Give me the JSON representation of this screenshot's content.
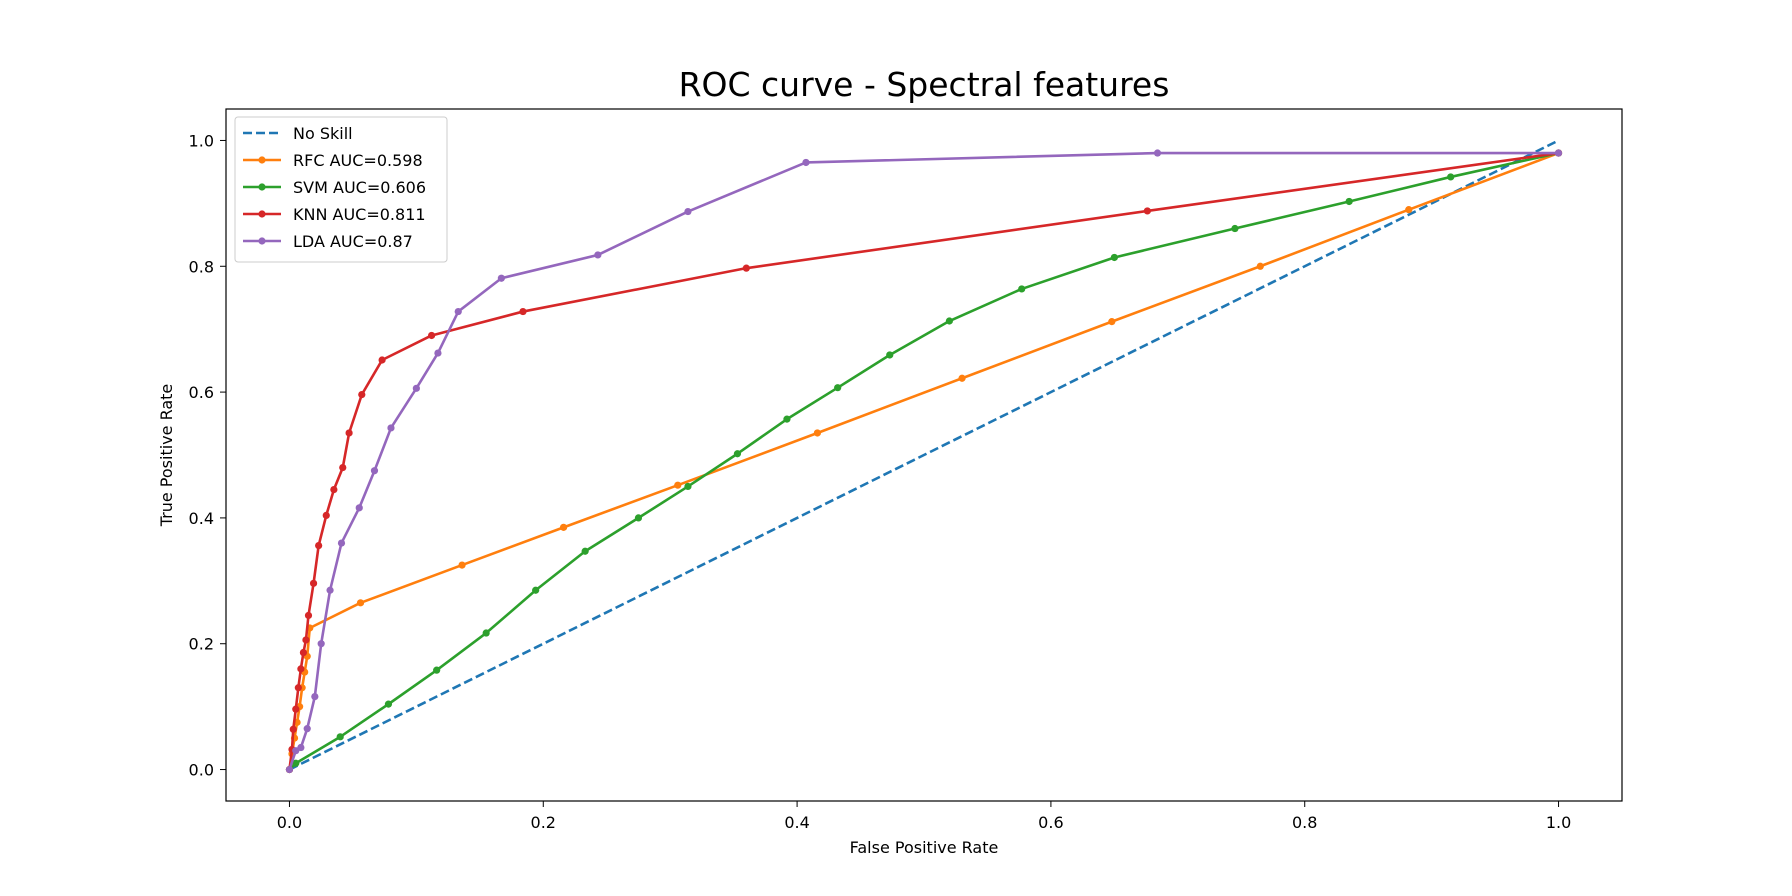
{
  "chart_data": {
    "type": "line",
    "title": "ROC curve - Spectral features",
    "xlabel": "False Positive Rate",
    "ylabel": "True Positive Rate",
    "xlim": [
      -0.05,
      1.05
    ],
    "ylim": [
      -0.05,
      1.05
    ],
    "xticks": [
      "0.0",
      "0.2",
      "0.4",
      "0.6",
      "0.8",
      "1.0"
    ],
    "yticks": [
      "0.0",
      "0.2",
      "0.4",
      "0.6",
      "0.8",
      "1.0"
    ],
    "grid": false,
    "legend_position": "top-left",
    "series": [
      {
        "name": "No Skill",
        "color": "#1f77b4",
        "style": "dashed",
        "markers": false,
        "x": [
          0,
          1
        ],
        "y": [
          0,
          1
        ]
      },
      {
        "name": "RFC AUC=0.598",
        "color": "#ff7f0e",
        "style": "solid",
        "markers": true,
        "x": [
          0,
          0.002,
          0.004,
          0.006,
          0.008,
          0.01,
          0.012,
          0.014,
          0.016,
          0.056,
          0.136,
          0.216,
          0.306,
          0.416,
          0.53,
          0.648,
          0.765,
          0.882,
          1.0
        ],
        "y": [
          0,
          0.025,
          0.05,
          0.075,
          0.1,
          0.13,
          0.155,
          0.18,
          0.225,
          0.265,
          0.325,
          0.385,
          0.452,
          0.535,
          0.622,
          0.712,
          0.8,
          0.89,
          0.98
        ]
      },
      {
        "name": "SVM AUC=0.606",
        "color": "#2ca02c",
        "style": "solid",
        "markers": true,
        "x": [
          0,
          0.005,
          0.04,
          0.078,
          0.116,
          0.155,
          0.194,
          0.233,
          0.275,
          0.314,
          0.353,
          0.392,
          0.432,
          0.473,
          0.52,
          0.577,
          0.65,
          0.745,
          0.835,
          0.915,
          1.0
        ],
        "y": [
          0,
          0.01,
          0.052,
          0.104,
          0.158,
          0.217,
          0.285,
          0.347,
          0.4,
          0.45,
          0.502,
          0.557,
          0.607,
          0.659,
          0.713,
          0.764,
          0.814,
          0.86,
          0.903,
          0.942,
          0.98
        ]
      },
      {
        "name": "KNN AUC=0.811",
        "color": "#d62728",
        "style": "solid",
        "markers": true,
        "x": [
          0,
          0.002,
          0.003,
          0.005,
          0.007,
          0.009,
          0.011,
          0.013,
          0.015,
          0.019,
          0.023,
          0.029,
          0.035,
          0.042,
          0.047,
          0.057,
          0.073,
          0.112,
          0.184,
          0.36,
          0.676,
          1.0
        ],
        "y": [
          0,
          0.032,
          0.064,
          0.096,
          0.13,
          0.16,
          0.186,
          0.206,
          0.245,
          0.296,
          0.356,
          0.404,
          0.445,
          0.48,
          0.535,
          0.596,
          0.651,
          0.69,
          0.728,
          0.797,
          0.888,
          0.98
        ]
      },
      {
        "name": "LDA AUC=0.87",
        "color": "#9467bd",
        "style": "solid",
        "markers": true,
        "x": [
          0,
          0.005,
          0.009,
          0.014,
          0.02,
          0.025,
          0.032,
          0.041,
          0.055,
          0.067,
          0.08,
          0.1,
          0.117,
          0.133,
          0.167,
          0.243,
          0.314,
          0.407,
          0.684,
          1.0
        ],
        "y": [
          0,
          0.03,
          0.035,
          0.065,
          0.116,
          0.2,
          0.285,
          0.36,
          0.416,
          0.475,
          0.543,
          0.606,
          0.662,
          0.728,
          0.781,
          0.818,
          0.887,
          0.965,
          0.98,
          0.98
        ]
      }
    ]
  }
}
